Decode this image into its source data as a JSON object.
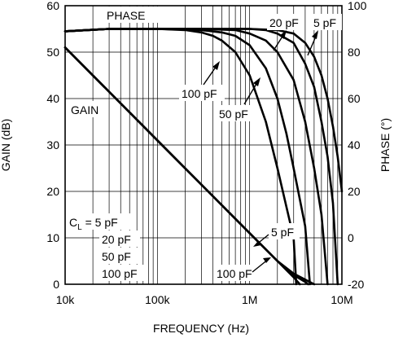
{
  "chart_data": {
    "type": "line",
    "x_axis": {
      "label": "FREQUENCY (Hz)",
      "scale": "log",
      "range": [
        10000,
        10000000
      ],
      "ticks": [
        {
          "value": 10000,
          "label": "10k"
        },
        {
          "value": 100000,
          "label": "100k"
        },
        {
          "value": 1000000,
          "label": "1M"
        },
        {
          "value": 10000000,
          "label": "10M"
        }
      ]
    },
    "y_left": {
      "label": "GAIN (dB)",
      "range": [
        0,
        60
      ],
      "ticks": [
        0,
        10,
        20,
        30,
        40,
        50,
        60
      ]
    },
    "y_right": {
      "label": "PHASE (°)",
      "range": [
        -20,
        100
      ],
      "ticks": [
        -20,
        0,
        20,
        40,
        60,
        80,
        100
      ]
    },
    "grid": true,
    "annotations": {
      "phase": "PHASE",
      "gain": "GAIN",
      "cl_prefix": "C",
      "cl_sub": "L",
      "cl_rest": " = 5 pF",
      "cl_20": "20 pF",
      "cl_50": "50 pF",
      "cl_100": "100 pF",
      "ph_20": "20 pF",
      "ph_5": "5 pF",
      "ph_100": "100 pF",
      "ph_50": "50 pF",
      "g_5": "5 pF",
      "g_100": "100 pF"
    },
    "series": [
      {
        "axis": "left",
        "x": [
          10000,
          100000,
          1000000,
          2000000,
          3000000,
          3500000
        ],
        "y": [
          51,
          31,
          11,
          5,
          1.5,
          0
        ]
      },
      {
        "axis": "left",
        "x": [
          10000,
          100000,
          1000000,
          2000000,
          3000000,
          4000000,
          4300000
        ],
        "y": [
          51,
          31,
          11,
          5,
          2,
          0.5,
          0
        ]
      },
      {
        "axis": "left",
        "x": [
          10000,
          100000,
          1000000,
          2000000,
          3000000,
          4000000,
          5000000
        ],
        "y": [
          51,
          31,
          11,
          5,
          2.3,
          1,
          0
        ]
      },
      {
        "axis": "right",
        "x": [
          10000,
          30000,
          100000,
          200000,
          300000,
          400000,
          500000,
          700000,
          1000000,
          1500000,
          2000000,
          3000000,
          3200000
        ],
        "y": [
          89,
          90,
          90,
          89.5,
          88.5,
          87,
          85,
          80,
          70,
          50,
          30,
          0,
          -20
        ]
      },
      {
        "axis": "right",
        "x": [
          10000,
          30000,
          100000,
          300000,
          500000,
          700000,
          1000000,
          1500000,
          2000000,
          2500000,
          3000000,
          4000000,
          4500000
        ],
        "y": [
          89,
          90,
          90,
          89.5,
          88.5,
          87,
          83,
          73,
          60,
          45,
          30,
          5,
          -20
        ]
      },
      {
        "axis": "right",
        "x": [
          10000,
          30000,
          100000,
          300000,
          700000,
          1000000,
          1500000,
          2000000,
          3000000,
          4000000,
          5000000,
          6000000,
          7000000
        ],
        "y": [
          89,
          90,
          90,
          90,
          89.5,
          88,
          85,
          80,
          68,
          50,
          30,
          10,
          -20
        ]
      },
      {
        "axis": "right",
        "x": [
          10000,
          30000,
          100000,
          300000,
          1000000,
          1500000,
          2000000,
          3000000,
          4000000,
          5000000,
          6000000,
          7000000,
          8000000,
          9000000
        ],
        "y": [
          89,
          90,
          90,
          90,
          90,
          89.5,
          88,
          84,
          75,
          65,
          50,
          35,
          15,
          -20
        ]
      },
      {
        "axis": "right",
        "x": [
          10000,
          30000,
          100000,
          300000,
          1000000,
          2000000,
          3000000,
          4000000,
          5000000,
          6000000,
          7000000,
          8000000,
          9000000,
          10000000
        ],
        "y": [
          89,
          90,
          90,
          90,
          90,
          89.5,
          88,
          84,
          78,
          70,
          60,
          48,
          35,
          20
        ]
      }
    ]
  }
}
